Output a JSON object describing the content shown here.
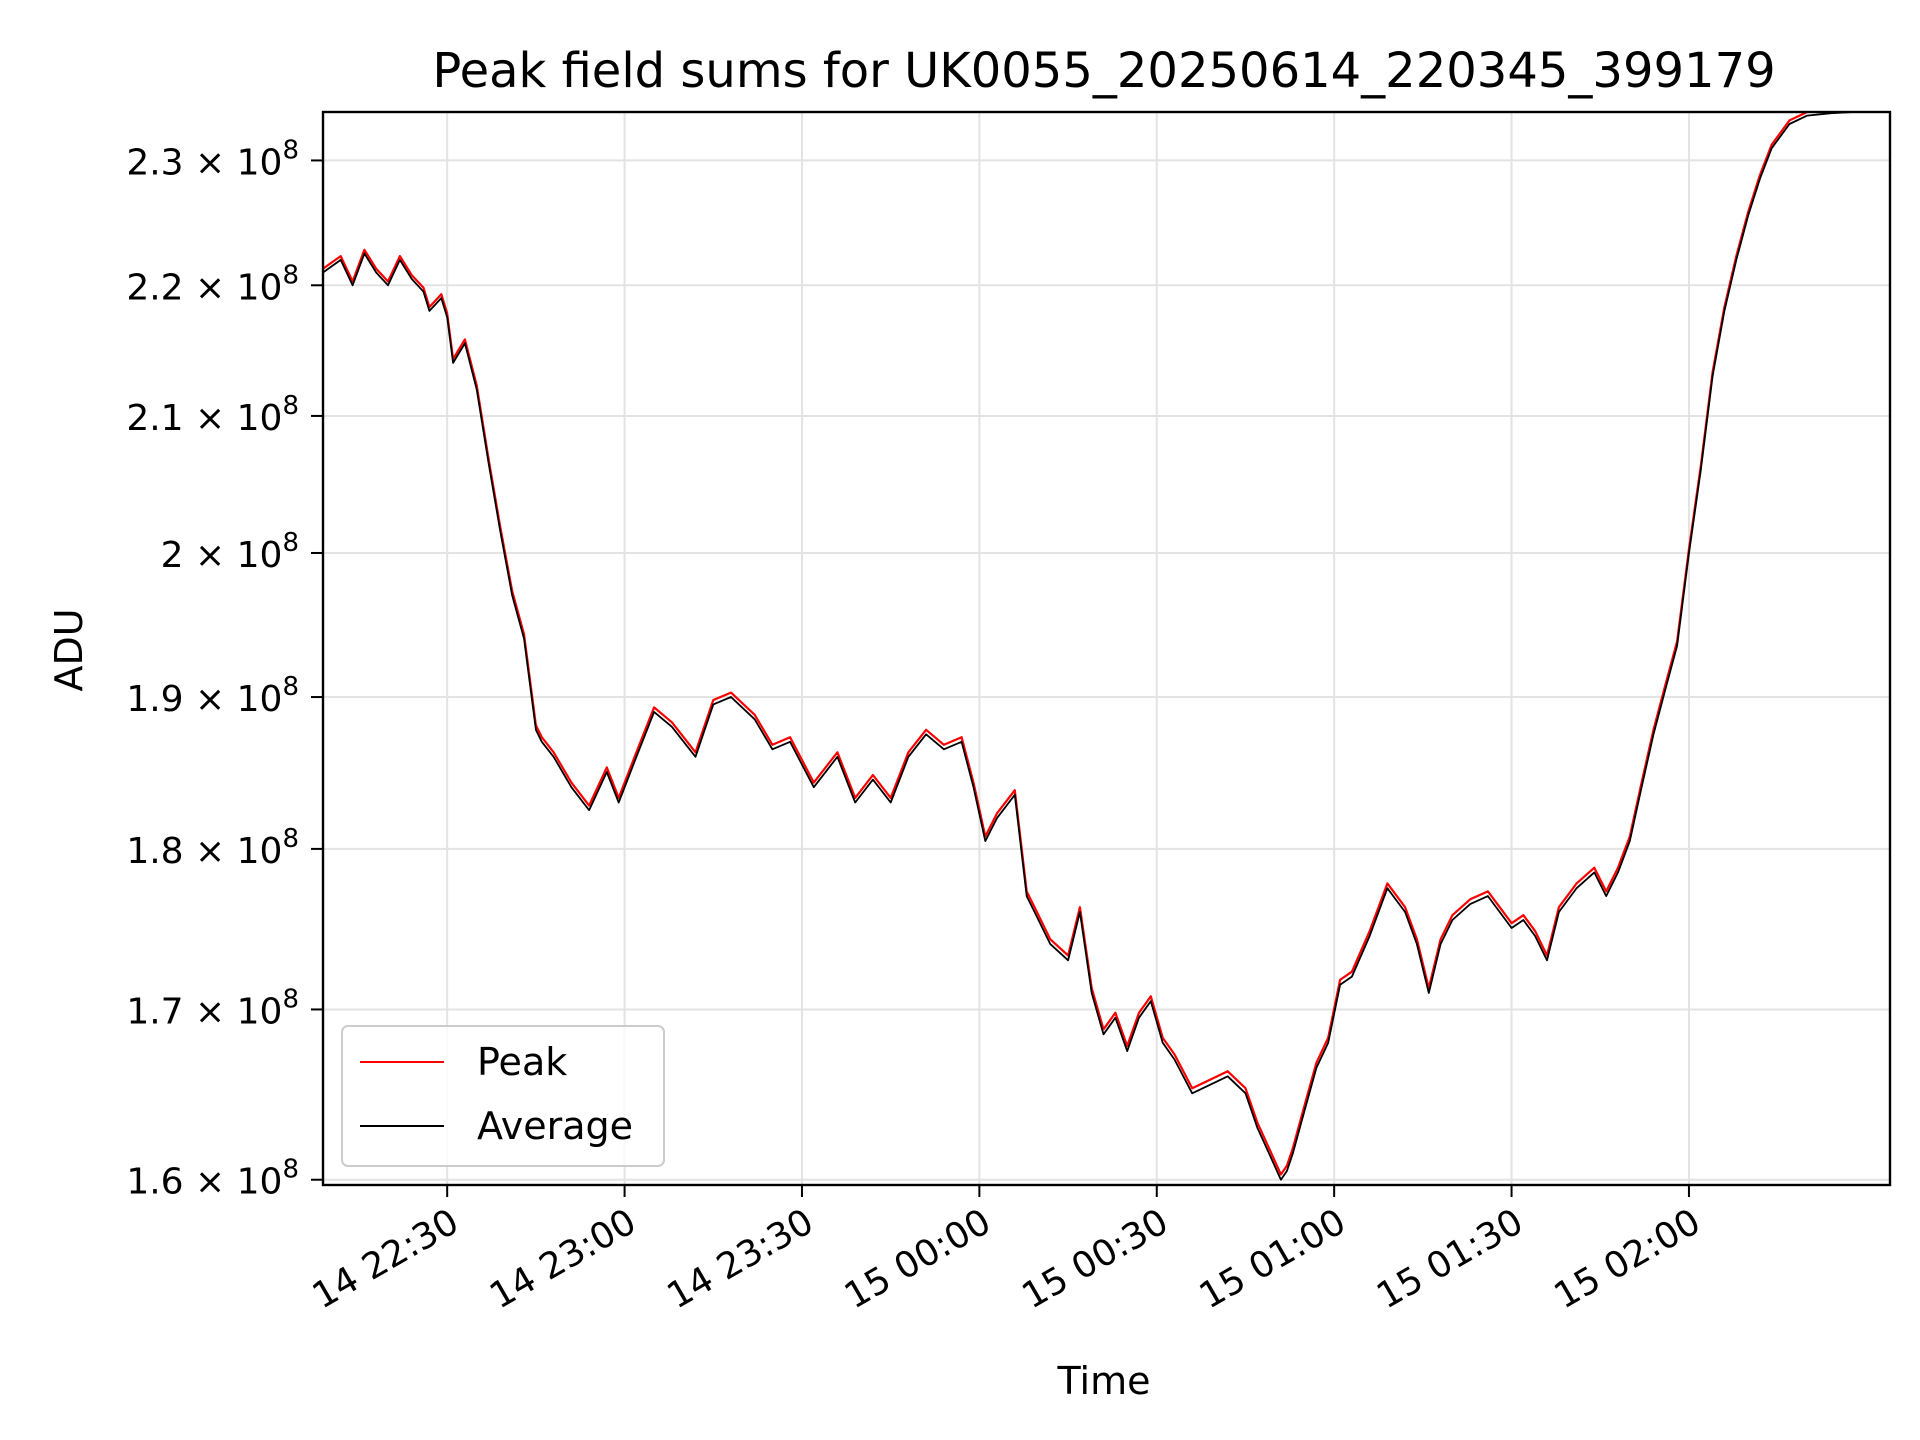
{
  "chart_data": {
    "type": "line",
    "title": "Peak field sums for UK0055_20250614_220345_399179",
    "xlabel": "Time",
    "ylabel": "ADU",
    "y_scale": "log",
    "x_range_minutes_of_day": [
      1329,
      1594
    ],
    "ylim": [
      159700000,
      234000000
    ],
    "grid": true,
    "legend_position": "lower-left",
    "x_ticks": [
      {
        "value": 1350,
        "label": "14 22:30"
      },
      {
        "value": 1380,
        "label": "14 23:00"
      },
      {
        "value": 1410,
        "label": "14 23:30"
      },
      {
        "value": 1440,
        "label": "15 00:00"
      },
      {
        "value": 1470,
        "label": "15 00:30"
      },
      {
        "value": 1500,
        "label": "15 01:00"
      },
      {
        "value": 1530,
        "label": "15 01:30"
      },
      {
        "value": 1560,
        "label": "15 02:00"
      }
    ],
    "y_ticks": [
      {
        "value": 160000000,
        "mantissa": "1.6"
      },
      {
        "value": 170000000,
        "mantissa": "1.7"
      },
      {
        "value": 180000000,
        "mantissa": "1.8"
      },
      {
        "value": 190000000,
        "mantissa": "1.9"
      },
      {
        "value": 200000000,
        "mantissa": "2"
      },
      {
        "value": 210000000,
        "mantissa": "2.1"
      },
      {
        "value": 220000000,
        "mantissa": "2.2"
      },
      {
        "value": 230000000,
        "mantissa": "2.3"
      }
    ],
    "y_tick_base": "× 10",
    "y_tick_exponent": "8",
    "series": [
      {
        "name": "Peak",
        "color": "#ff0000",
        "offset": 300000
      },
      {
        "name": "Average",
        "color": "#000000",
        "offset": 0
      }
    ],
    "x": [
      1329,
      1332,
      1334,
      1336,
      1338,
      1340,
      1342,
      1344,
      1346,
      1347,
      1349,
      1350,
      1351,
      1353,
      1355,
      1357,
      1359,
      1361,
      1363,
      1365,
      1366,
      1368,
      1371,
      1374,
      1377,
      1379,
      1382,
      1385,
      1388,
      1392,
      1395,
      1398,
      1402,
      1405,
      1408,
      1412,
      1416,
      1419,
      1422,
      1425,
      1428,
      1431,
      1434,
      1437,
      1439,
      1441,
      1443,
      1446,
      1448,
      1450,
      1452,
      1455,
      1457,
      1459,
      1461,
      1463,
      1465,
      1467,
      1469,
      1471,
      1473,
      1476,
      1479,
      1482,
      1485,
      1487,
      1489,
      1491,
      1492,
      1493,
      1495,
      1497,
      1499,
      1501,
      1503,
      1506,
      1509,
      1512,
      1514,
      1516,
      1518,
      1520,
      1523,
      1526,
      1528,
      1530,
      1532,
      1534,
      1536,
      1538,
      1541,
      1544,
      1546,
      1548,
      1550,
      1552,
      1554,
      1556,
      1558,
      1560,
      1562,
      1564,
      1566,
      1568,
      1570,
      1572,
      1574,
      1577,
      1580,
      1584,
      1588,
      1594
    ],
    "average_values": [
      221000000,
      222000000,
      220000000,
      222500000,
      221000000,
      220000000,
      222000000,
      220500000,
      219500000,
      218000000,
      219000000,
      217500000,
      214000000,
      215500000,
      212000000,
      206500000,
      201500000,
      197000000,
      194000000,
      187800000,
      187000000,
      186000000,
      184000000,
      182500000,
      185000000,
      183000000,
      186000000,
      189000000,
      188000000,
      186000000,
      189500000,
      190000000,
      188500000,
      186500000,
      187000000,
      184000000,
      186000000,
      183000000,
      184500000,
      183000000,
      186000000,
      187500000,
      186500000,
      187000000,
      184000000,
      180500000,
      182000000,
      183500000,
      177000000,
      175500000,
      174000000,
      173000000,
      176000000,
      171000000,
      168500000,
      169500000,
      167500000,
      169500000,
      170500000,
      168000000,
      167000000,
      165000000,
      165500000,
      166000000,
      165000000,
      163000000,
      161500000,
      160000000,
      160500000,
      161500000,
      164000000,
      166500000,
      168000000,
      171500000,
      172000000,
      174500000,
      177500000,
      176000000,
      174000000,
      171000000,
      174000000,
      175500000,
      176500000,
      177000000,
      176000000,
      175000000,
      175500000,
      174500000,
      173000000,
      176000000,
      177500000,
      178500000,
      177000000,
      178500000,
      180500000,
      184000000,
      187500000,
      190500000,
      193500000,
      200000000,
      206000000,
      213000000,
      218000000,
      222000000,
      225500000,
      228500000,
      231000000,
      233000000,
      233700000,
      233900000,
      234000000,
      234000000
    ]
  },
  "legend": {
    "peak_label": "Peak",
    "average_label": "Average"
  }
}
